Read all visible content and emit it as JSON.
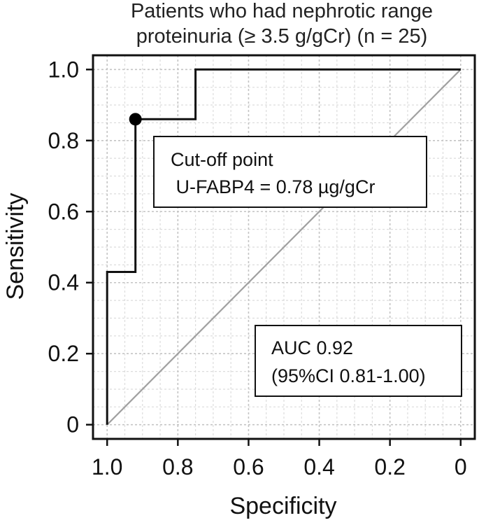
{
  "chart_data": {
    "type": "line",
    "title": "Patients who had nephrotic range proteinuria (≥ 3.5 g/gCr) (n = 25)",
    "title_lines": [
      "Patients who had nephrotic range",
      "proteinuria (≥ 3.5 g/gCr) (n = 25)"
    ],
    "xlabel": "Specificity",
    "ylabel": "Sensitivity",
    "xlim": [
      1.04,
      -0.04
    ],
    "ylim": [
      -0.04,
      1.04
    ],
    "x_reversed": true,
    "grid": true,
    "x_ticks": [
      1.0,
      0.8,
      0.6,
      0.4,
      0.2,
      0
    ],
    "x_tick_labels": [
      "1.0",
      "0.8",
      "0.6",
      "0.4",
      "0.2",
      "0"
    ],
    "y_ticks": [
      0,
      0.2,
      0.4,
      0.6,
      0.8,
      1.0
    ],
    "y_tick_labels": [
      "0",
      "0.2",
      "0.4",
      "0.6",
      "0.8",
      "1.0"
    ],
    "series": [
      {
        "x": [
          1.0,
          1.0,
          0.92,
          0.92,
          0.75,
          0.75,
          0
        ],
        "y": [
          0,
          0.43,
          0.43,
          0.86,
          0.86,
          1.0,
          1.0
        ],
        "color": "#111111"
      }
    ],
    "reference_line": {
      "x": [
        1.0,
        0
      ],
      "y": [
        0,
        1.0
      ],
      "color": "#a0a0a0"
    },
    "highlight_point": {
      "x": 0.92,
      "y": 0.86
    },
    "annotations": [
      {
        "lines": [
          "Cut-off point",
          " U-FABP4 = 0.78 µg/gCr"
        ]
      },
      {
        "lines": [
          "AUC 0.92",
          "(95%CI 0.81-1.00)"
        ]
      }
    ]
  }
}
